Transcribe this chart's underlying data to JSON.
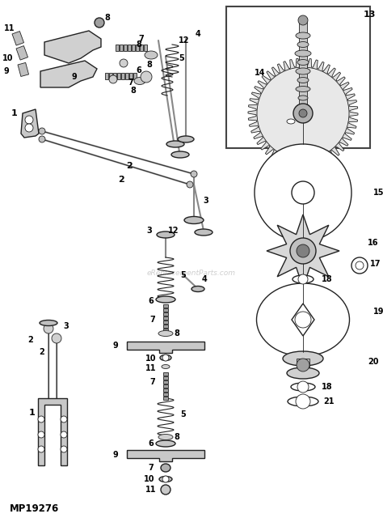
{
  "bg_color": "#ffffff",
  "line_color": "#222222",
  "watermark_text": "eReplacementParts.com",
  "watermark_color": "#bbbbbb",
  "part_number": "MP19276",
  "fig_width": 4.74,
  "fig_height": 6.4,
  "dpi": 100
}
